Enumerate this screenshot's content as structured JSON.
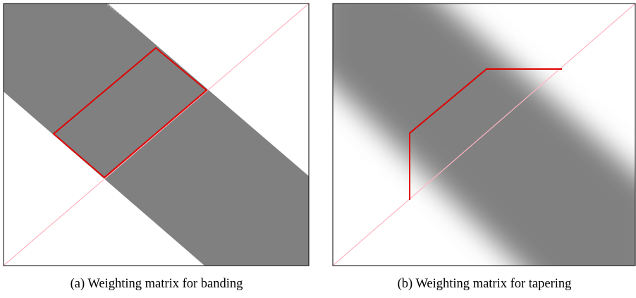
{
  "panels": [
    {
      "id": "banding",
      "caption": "(a) Weighting matrix for banding"
    },
    {
      "id": "tapering",
      "caption": "(b) Weighting matrix for tapering"
    }
  ],
  "colors": {
    "band_fill": "#808080",
    "background": "#ffffff",
    "frame": "#000000",
    "outline": "#e00000",
    "diagonal": "#ffb6c1"
  }
}
